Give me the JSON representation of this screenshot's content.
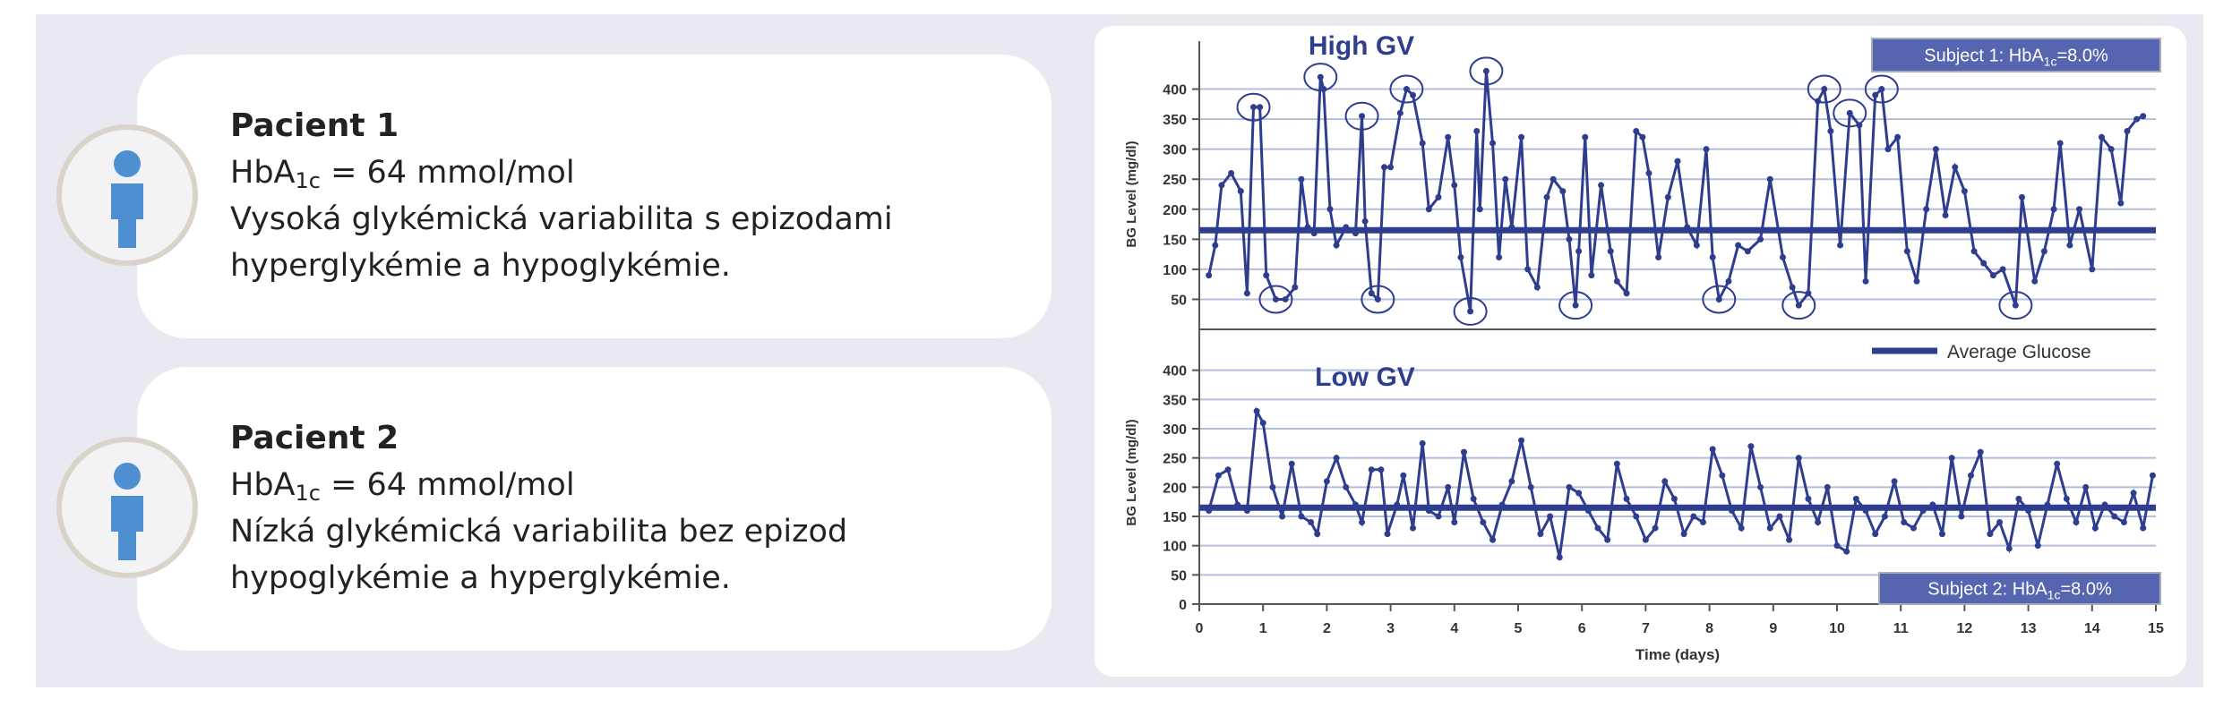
{
  "cards": [
    {
      "title": "Pacient 1",
      "hba1c": [
        "HbA",
        "1c",
        " = 64 mmol/mol"
      ],
      "description": [
        "Vysoká glykémická variabilita s epizodami",
        "hyperglykémie a hypoglykémie."
      ]
    },
    {
      "title": "Pacient 2",
      "hba1c": [
        "HbA",
        "1c",
        " = 64 mmol/mol"
      ],
      "description": [
        "Nízká glykémická variabilita bez epizod",
        "hypoglykémie a hyperglykémie."
      ]
    }
  ],
  "chart_data": [
    {
      "type": "line",
      "title": "High GV",
      "badge": [
        "Subject 1: HbA",
        "1c",
        "=8.0%"
      ],
      "ylabel": "BG Level (mg/dl)",
      "color": "#2f3d8f",
      "average": 165,
      "average_color": "#2f3d8f",
      "grid": true,
      "xlim": [
        0,
        15
      ],
      "ylim": [
        0,
        450
      ],
      "yticks": [
        50,
        100,
        150,
        200,
        250,
        300,
        350,
        400
      ],
      "x": [
        0.15,
        0.25,
        0.35,
        0.5,
        0.65,
        0.75,
        0.85,
        0.95,
        1.05,
        1.2,
        1.35,
        1.5,
        1.6,
        1.7,
        1.8,
        1.9,
        1.95,
        2.05,
        2.15,
        2.3,
        2.45,
        2.55,
        2.6,
        2.7,
        2.8,
        2.9,
        3.0,
        3.15,
        3.25,
        3.35,
        3.5,
        3.6,
        3.75,
        3.9,
        4.0,
        4.1,
        4.25,
        4.35,
        4.4,
        4.5,
        4.6,
        4.7,
        4.8,
        4.9,
        5.05,
        5.15,
        5.3,
        5.45,
        5.55,
        5.7,
        5.8,
        5.9,
        5.95,
        6.05,
        6.15,
        6.3,
        6.45,
        6.55,
        6.7,
        6.85,
        6.95,
        7.05,
        7.2,
        7.35,
        7.5,
        7.65,
        7.8,
        7.95,
        8.05,
        8.15,
        8.3,
        8.45,
        8.6,
        8.8,
        8.95,
        9.15,
        9.3,
        9.4,
        9.55,
        9.7,
        9.8,
        9.9,
        10.05,
        10.2,
        10.35,
        10.45,
        10.6,
        10.7,
        10.8,
        10.95,
        11.1,
        11.25,
        11.4,
        11.55,
        11.7,
        11.85,
        12.0,
        12.15,
        12.3,
        12.45,
        12.6,
        12.8,
        12.9,
        13.1,
        13.25,
        13.4,
        13.5,
        13.65,
        13.8,
        14.0,
        14.15,
        14.3,
        14.45,
        14.55,
        14.7,
        14.8
      ],
      "values": [
        90,
        140,
        240,
        260,
        230,
        60,
        370,
        370,
        90,
        50,
        50,
        70,
        250,
        170,
        160,
        420,
        400,
        200,
        140,
        170,
        160,
        355,
        180,
        60,
        50,
        270,
        270,
        360,
        400,
        390,
        310,
        200,
        220,
        320,
        240,
        120,
        30,
        330,
        200,
        430,
        310,
        120,
        250,
        170,
        320,
        100,
        70,
        220,
        250,
        230,
        150,
        40,
        130,
        320,
        90,
        240,
        130,
        80,
        60,
        330,
        320,
        260,
        120,
        220,
        280,
        170,
        140,
        300,
        120,
        50,
        80,
        140,
        130,
        150,
        250,
        120,
        70,
        40,
        60,
        380,
        400,
        330,
        140,
        360,
        340,
        80,
        390,
        400,
        300,
        320,
        130,
        80,
        200,
        300,
        190,
        270,
        230,
        130,
        110,
        90,
        100,
        40,
        220,
        80,
        130,
        200,
        310,
        140,
        200,
        100,
        320,
        300,
        210,
        330,
        350,
        355
      ],
      "circled": [
        6,
        15,
        21,
        28,
        39,
        80,
        83,
        87,
        9,
        24,
        36,
        51,
        69,
        77,
        101
      ]
    },
    {
      "type": "line",
      "title": "Low GV",
      "badge": [
        "Subject 2: HbA",
        "1c",
        "=8.0%"
      ],
      "ylabel": "BG Level (mg/dl)",
      "xlabel": "Time (days)",
      "legend": "Average Glucose",
      "color": "#2f3d8f",
      "average": 165,
      "average_color": "#2f3d8f",
      "grid": true,
      "xlim": [
        0,
        15
      ],
      "ylim": [
        0,
        450
      ],
      "yticks": [
        0,
        50,
        100,
        150,
        200,
        250,
        300,
        350,
        400
      ],
      "xticks": [
        0,
        1,
        2,
        3,
        4,
        5,
        6,
        7,
        8,
        9,
        10,
        11,
        12,
        13,
        14,
        15
      ],
      "x": [
        0.15,
        0.3,
        0.45,
        0.6,
        0.75,
        0.9,
        1.0,
        1.15,
        1.3,
        1.45,
        1.6,
        1.75,
        1.85,
        2.0,
        2.15,
        2.3,
        2.45,
        2.55,
        2.7,
        2.85,
        2.95,
        3.1,
        3.2,
        3.35,
        3.5,
        3.6,
        3.75,
        3.9,
        4.0,
        4.15,
        4.3,
        4.45,
        4.6,
        4.75,
        4.9,
        5.05,
        5.2,
        5.35,
        5.5,
        5.65,
        5.8,
        5.95,
        6.1,
        6.25,
        6.4,
        6.55,
        6.7,
        6.85,
        7.0,
        7.15,
        7.3,
        7.45,
        7.6,
        7.75,
        7.9,
        8.05,
        8.2,
        8.35,
        8.5,
        8.65,
        8.8,
        8.95,
        9.1,
        9.25,
        9.4,
        9.55,
        9.7,
        9.85,
        10.0,
        10.15,
        10.3,
        10.45,
        10.6,
        10.75,
        10.9,
        11.05,
        11.2,
        11.35,
        11.5,
        11.65,
        11.8,
        11.95,
        12.1,
        12.25,
        12.4,
        12.55,
        12.7,
        12.85,
        13.0,
        13.15,
        13.3,
        13.45,
        13.6,
        13.75,
        13.9,
        14.05,
        14.2,
        14.35,
        14.5,
        14.65,
        14.8,
        14.95
      ],
      "values": [
        160,
        220,
        230,
        170,
        160,
        330,
        310,
        200,
        150,
        240,
        150,
        140,
        120,
        210,
        250,
        200,
        170,
        140,
        230,
        230,
        120,
        170,
        220,
        130,
        275,
        160,
        150,
        200,
        140,
        260,
        180,
        140,
        110,
        170,
        210,
        280,
        200,
        120,
        150,
        80,
        200,
        190,
        160,
        130,
        110,
        240,
        180,
        150,
        110,
        130,
        210,
        180,
        120,
        150,
        140,
        265,
        220,
        160,
        130,
        270,
        200,
        130,
        150,
        110,
        250,
        180,
        140,
        200,
        100,
        90,
        180,
        160,
        120,
        150,
        210,
        140,
        130,
        160,
        170,
        120,
        250,
        150,
        220,
        260,
        120,
        140,
        95,
        180,
        160,
        100,
        170,
        240,
        180,
        140,
        200,
        130,
        170,
        150,
        140,
        190,
        130,
        220
      ]
    }
  ]
}
